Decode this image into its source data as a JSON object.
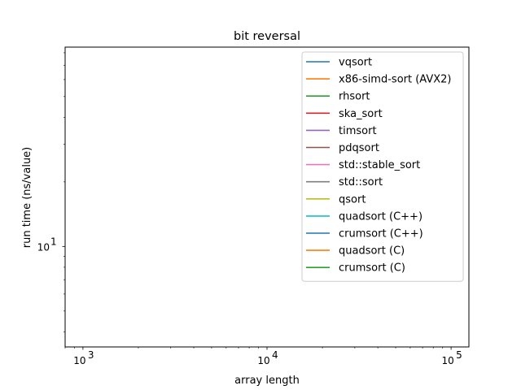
{
  "chart_data": {
    "type": "line",
    "title": "bit reversal",
    "xlabel": "array length",
    "ylabel": "run time (ns/value)",
    "xscale": "log",
    "yscale": "log",
    "xlim": [
      800,
      125000
    ],
    "ylim": [
      3.4,
      85
    ],
    "xticks": [
      {
        "value": 1000,
        "base": "10",
        "exp": "3"
      },
      {
        "value": 10000,
        "base": "10",
        "exp": "4"
      },
      {
        "value": 100000,
        "base": "10",
        "exp": "5"
      }
    ],
    "yticks": [
      {
        "value": 10,
        "base": "10",
        "exp": "1"
      }
    ],
    "grid": false,
    "legend_position": "upper-right",
    "series": [
      {
        "name": "vqsort",
        "color": "#1f77b4",
        "x": [],
        "y": []
      },
      {
        "name": "x86-simd-sort (AVX2)",
        "color": "#ff7f0e",
        "x": [],
        "y": []
      },
      {
        "name": "rhsort",
        "color": "#2ca02c",
        "x": [],
        "y": []
      },
      {
        "name": "ska_sort",
        "color": "#d62728",
        "x": [],
        "y": []
      },
      {
        "name": "timsort",
        "color": "#9467bd",
        "x": [],
        "y": []
      },
      {
        "name": "pdqsort",
        "color": "#8c564b",
        "x": [],
        "y": []
      },
      {
        "name": "std::stable_sort",
        "color": "#e377c2",
        "x": [],
        "y": []
      },
      {
        "name": "std::sort",
        "color": "#7f7f7f",
        "x": [],
        "y": []
      },
      {
        "name": "qsort",
        "color": "#bcbd22",
        "x": [],
        "y": []
      },
      {
        "name": "quadsort (C++)",
        "color": "#17becf",
        "x": [],
        "y": []
      },
      {
        "name": "crumsort (C++)",
        "color": "#1f77b4",
        "x": [],
        "y": []
      },
      {
        "name": "quadsort (C)",
        "color": "#ff7f0e",
        "x": [],
        "y": []
      },
      {
        "name": "crumsort (C)",
        "color": "#2ca02c",
        "x": [],
        "y": []
      }
    ]
  }
}
